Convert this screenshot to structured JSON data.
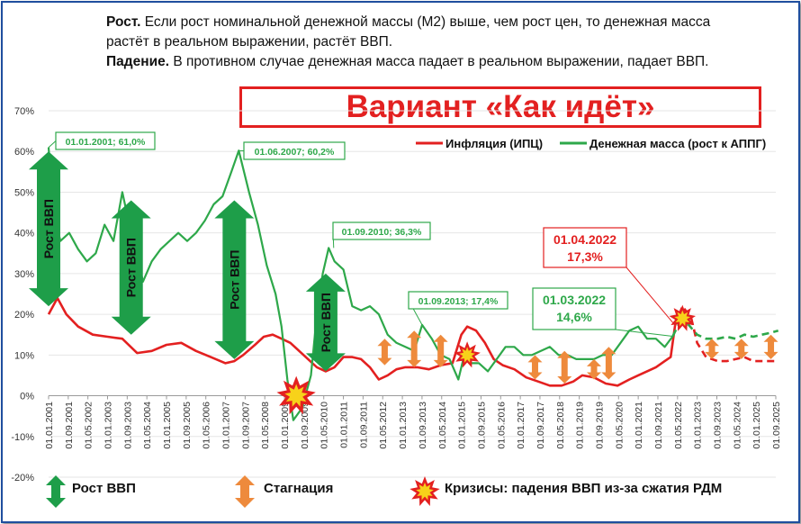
{
  "header": {
    "growth_title": "Рост.",
    "growth_text": "Если рост номинальной денежной массы (М2) выше, чем рост цен,  то денежная масса растёт в реальном выражении, растёт ВВП.",
    "fall_title": "Падение.",
    "fall_text": "В противном случае денежная масса падает в реальном выражении, падает ВВП."
  },
  "variant_title": "Вариант «Как идёт»",
  "legend": {
    "inflation": "Инфляция (ИПЦ)",
    "money": "Денежная масса (рост к АППГ)",
    "growth": "Рост ВВП",
    "stagnation": "Стагнация",
    "crisis": "Кризисы: падения ВВП из-за сжатия РДМ"
  },
  "arrow_label": "Рост ВВП",
  "colors": {
    "inflation": "#e32020",
    "money": "#2ea84a",
    "growth_arrow": "#1e9e49",
    "stagnation_arrow": "#ee8a3c",
    "frame": "#1f4e9e"
  },
  "chart_data": {
    "type": "line",
    "ylim": [
      -20,
      70
    ],
    "y_ticks": [
      "70%",
      "60%",
      "50%",
      "40%",
      "30%",
      "20%",
      "10%",
      "0%",
      "-10%",
      "-20%"
    ],
    "x_tick_labels": [
      "01.01.2001",
      "01.09.2001",
      "01.05.2002",
      "01.01.2003",
      "01.09.2003",
      "01.05.2004",
      "01.01.2005",
      "01.09.2005",
      "01.05.2006",
      "01.01.2007",
      "01.09.2007",
      "01.05.2008",
      "01.01.2009",
      "01.09.2009",
      "01.05.2010",
      "01.01.2011",
      "01.09.2011",
      "01.05.2012",
      "01.01.2013",
      "01.09.2013",
      "01.05.2014",
      "01.01.2015",
      "01.09.2015",
      "01.05.2016",
      "01.01.2017",
      "01.09.2017",
      "01.05.2018",
      "01.01.2019",
      "01.09.2019",
      "01.05.2020",
      "01.01.2021",
      "01.09.2021",
      "01.05.2022",
      "01.01.2023",
      "01.09.2023",
      "01.05.2024",
      "01.01.2025",
      "01.09.2025"
    ],
    "series": [
      {
        "name": "Инфляция (ИПЦ)",
        "x": [
          2001.0,
          2001.3,
          2001.6,
          2002.0,
          2002.5,
          2003.0,
          2003.5,
          2004.0,
          2004.5,
          2005.0,
          2005.5,
          2006.0,
          2006.5,
          2007.0,
          2007.3,
          2007.6,
          2008.0,
          2008.3,
          2008.6,
          2008.9,
          2009.2,
          2009.5,
          2009.8,
          2010.1,
          2010.4,
          2010.7,
          2011.0,
          2011.3,
          2011.6,
          2011.9,
          2012.2,
          2012.5,
          2012.8,
          2013.1,
          2013.5,
          2013.9,
          2014.3,
          2014.7,
          2015.0,
          2015.2,
          2015.5,
          2015.8,
          2016.1,
          2016.4,
          2016.8,
          2017.2,
          2017.6,
          2018.0,
          2018.4,
          2018.8,
          2019.1,
          2019.5,
          2019.9,
          2020.3,
          2020.7,
          2021.0,
          2021.3,
          2021.6,
          2021.9,
          2022.1,
          2022.25
        ],
        "y": [
          20.0,
          24.0,
          20.0,
          17.0,
          15.0,
          14.5,
          14.0,
          10.5,
          11.0,
          12.5,
          13.0,
          11.0,
          9.5,
          8.0,
          8.5,
          10.0,
          12.5,
          14.5,
          15.0,
          14.0,
          13.0,
          11.0,
          9.0,
          7.0,
          6.0,
          7.0,
          9.5,
          9.5,
          9.0,
          7.0,
          4.0,
          5.0,
          6.5,
          7.0,
          7.0,
          6.5,
          7.5,
          8.0,
          15.0,
          17.0,
          16.0,
          13.0,
          9.0,
          7.5,
          6.5,
          4.5,
          3.5,
          2.5,
          2.5,
          3.5,
          5.0,
          4.5,
          3.0,
          2.5,
          4.0,
          5.0,
          6.0,
          7.0,
          8.5,
          9.5,
          17.3
        ]
      },
      {
        "name": "Денежная масса (рост к АППГ)",
        "x": [
          2001.0,
          2001.15,
          2001.4,
          2001.7,
          2002.0,
          2002.3,
          2002.6,
          2002.9,
          2003.2,
          2003.5,
          2003.8,
          2004.0,
          2004.2,
          2004.5,
          2004.8,
          2005.1,
          2005.4,
          2005.7,
          2006.0,
          2006.3,
          2006.6,
          2006.9,
          2007.2,
          2007.45,
          2007.8,
          2008.1,
          2008.4,
          2008.7,
          2008.9,
          2009.1,
          2009.3,
          2009.6,
          2009.9,
          2010.1,
          2010.3,
          2010.5,
          2010.7,
          2011.0,
          2011.3,
          2011.6,
          2011.9,
          2012.2,
          2012.5,
          2012.8,
          2013.1,
          2013.4,
          2013.67,
          2014.0,
          2014.3,
          2014.6,
          2014.9,
          2015.1,
          2015.3,
          2015.6,
          2015.9,
          2016.2,
          2016.5,
          2016.8,
          2017.1,
          2017.4,
          2017.7,
          2018.0,
          2018.3,
          2018.6,
          2018.9,
          2019.2,
          2019.5,
          2019.8,
          2020.1,
          2020.4,
          2020.7,
          2021.0,
          2021.3,
          2021.6,
          2021.9,
          2022.17
        ],
        "y": [
          61.0,
          46.0,
          38.0,
          40.0,
          36.0,
          33.0,
          35.0,
          42.0,
          38.0,
          50.0,
          40.0,
          35.0,
          28.0,
          33.0,
          36.0,
          38.0,
          40.0,
          38.0,
          40.0,
          43.0,
          47.0,
          49.0,
          55.0,
          60.2,
          50.0,
          42.0,
          32.0,
          25.0,
          17.0,
          4.0,
          -6.0,
          -3.0,
          5.0,
          20.0,
          30.0,
          36.3,
          33.0,
          31.0,
          22.0,
          21.0,
          22.0,
          20.0,
          15.0,
          13.0,
          12.0,
          11.0,
          17.4,
          14.0,
          10.0,
          9.0,
          4.0,
          10.0,
          8.0,
          8.0,
          6.0,
          9.0,
          12.0,
          12.0,
          10.0,
          10.0,
          11.0,
          12.0,
          10.0,
          10.0,
          9.0,
          9.0,
          9.0,
          10.0,
          10.0,
          13.0,
          16.0,
          17.0,
          14.0,
          14.0,
          12.0,
          14.6
        ]
      },
      {
        "name": "forecast-inflation",
        "x": [
          2022.25,
          2022.5,
          2022.8,
          2023.0,
          2023.3,
          2023.7,
          2024.0,
          2024.3,
          2024.6,
          2024.9,
          2025.2,
          2025.5,
          2025.75
        ],
        "y": [
          17.3,
          22.0,
          19.0,
          13.0,
          9.5,
          8.5,
          8.5,
          9.0,
          9.5,
          8.5,
          8.5,
          8.5,
          8.5
        ]
      },
      {
        "name": "forecast-money",
        "x": [
          2022.17,
          2022.4,
          2022.7,
          2023.0,
          2023.3,
          2023.7,
          2024.0,
          2024.3,
          2024.6,
          2024.9,
          2025.2,
          2025.5,
          2025.75
        ],
        "y": [
          14.6,
          18.0,
          17.5,
          15.0,
          14.0,
          14.0,
          14.5,
          14.0,
          15.0,
          14.5,
          15.0,
          15.5,
          16.0
        ]
      }
    ],
    "annotations": [
      {
        "text": "01.01.2001; 61,0%",
        "x": 2001.0,
        "y": 61.0
      },
      {
        "text": "01.06.2007; 60,2%",
        "x": 2007.45,
        "y": 60.2
      },
      {
        "text": "01.09.2010; 36,3%",
        "x": 2010.67,
        "y": 36.3
      },
      {
        "text": "01.09.2013; 17,4%",
        "x": 2013.67,
        "y": 17.4
      },
      {
        "text": "01.04.2022",
        "text2": "17,3%",
        "x": 2022.25,
        "y": 17.3
      },
      {
        "text": "01.03.2022",
        "text2": "14,6%",
        "x": 2022.17,
        "y": 14.6
      }
    ],
    "growth_arrows": [
      {
        "x": 2001.0,
        "y_top": 60,
        "y_bottom": 22
      },
      {
        "x": 2003.8,
        "y_top": 48,
        "y_bottom": 15
      },
      {
        "x": 2007.3,
        "y_top": 48,
        "y_bottom": 9
      },
      {
        "x": 2010.4,
        "y_top": 30,
        "y_bottom": 6
      }
    ],
    "stagnation_arrows": [
      {
        "x": 2012.4,
        "y_top": 14,
        "y_bottom": 7.5
      },
      {
        "x": 2013.4,
        "y_top": 16,
        "y_bottom": 7
      },
      {
        "x": 2014.3,
        "y_top": 15,
        "y_bottom": 7
      },
      {
        "x": 2017.5,
        "y_top": 10,
        "y_bottom": 4
      },
      {
        "x": 2018.5,
        "y_top": 11,
        "y_bottom": 3
      },
      {
        "x": 2019.5,
        "y_top": 9,
        "y_bottom": 4
      },
      {
        "x": 2020.0,
        "y_top": 12,
        "y_bottom": 4
      },
      {
        "x": 2023.5,
        "y_top": 14,
        "y_bottom": 9
      },
      {
        "x": 2024.5,
        "y_top": 14,
        "y_bottom": 9
      },
      {
        "x": 2025.5,
        "y_top": 15,
        "y_bottom": 9
      }
    ],
    "crises": [
      {
        "x": 2009.4,
        "y": 0
      },
      {
        "x": 2015.2,
        "y": 10
      },
      {
        "x": 2022.5,
        "y": 19
      }
    ]
  }
}
